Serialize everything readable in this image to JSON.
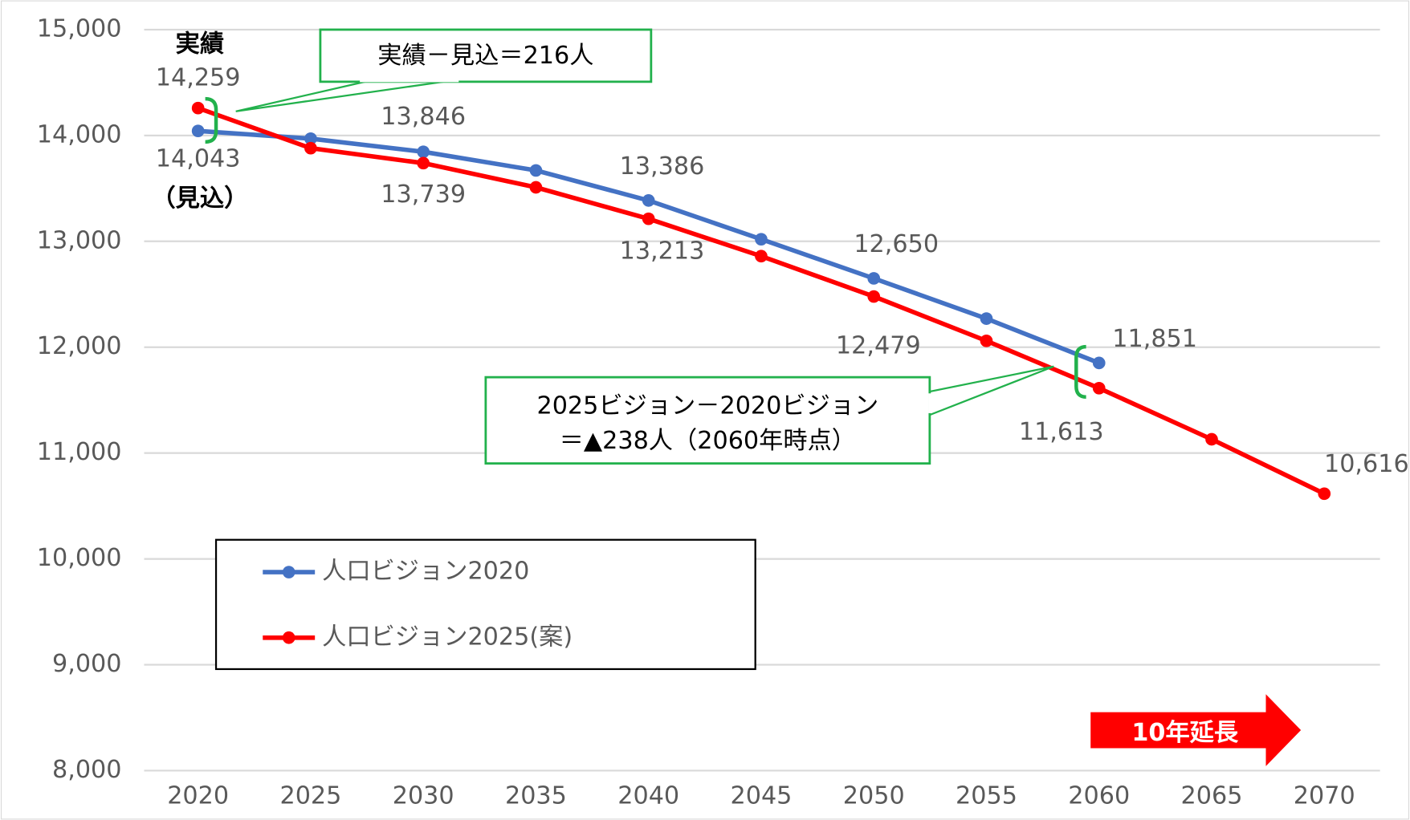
{
  "chart_data": {
    "type": "line",
    "x": [
      2020,
      2025,
      2030,
      2035,
      2040,
      2045,
      2050,
      2055,
      2060,
      2065,
      2070
    ],
    "series": [
      {
        "name": "人口ビジョン2020",
        "color": "#4472c4",
        "values": [
          14043,
          13970,
          13846,
          13670,
          13386,
          13020,
          12650,
          12270,
          11851,
          null,
          null
        ],
        "value_labels": [
          "14,043",
          null,
          "13,846",
          null,
          "13,386",
          null,
          "12,650",
          null,
          "11,851",
          null,
          null
        ]
      },
      {
        "name": "人口ビジョン2025(案)",
        "color": "#ff0000",
        "values": [
          14259,
          13880,
          13739,
          13510,
          13213,
          12860,
          12479,
          12060,
          11613,
          11130,
          10616
        ],
        "value_labels": [
          "14,259",
          null,
          "13,739",
          null,
          "13,213",
          null,
          "12,479",
          null,
          "11,613",
          null,
          "10,616"
        ]
      }
    ],
    "xlim": [
      2020,
      2070
    ],
    "xticks": [
      2020,
      2025,
      2030,
      2035,
      2040,
      2045,
      2050,
      2055,
      2060,
      2065,
      2070
    ],
    "ylim": [
      8000,
      15000
    ],
    "yticks": [
      {
        "value": 8000,
        "label": "8,000"
      },
      {
        "value": 9000,
        "label": "9,000"
      },
      {
        "value": 10000,
        "label": "10,000"
      },
      {
        "value": 11000,
        "label": "11,000"
      },
      {
        "value": 12000,
        "label": "12,000"
      },
      {
        "value": 13000,
        "label": "13,000"
      },
      {
        "value": 14000,
        "label": "14,000"
      },
      {
        "value": 15000,
        "label": "15,000"
      }
    ],
    "grid": true,
    "annotations": {
      "actual": "実績",
      "estimate": "（見込）",
      "callout1": "実績－見込＝216人",
      "callout2": [
        "2025ビジョン－2020ビジョン",
        "＝▲238人（2060年時点）"
      ],
      "extension": "10年延長"
    }
  }
}
